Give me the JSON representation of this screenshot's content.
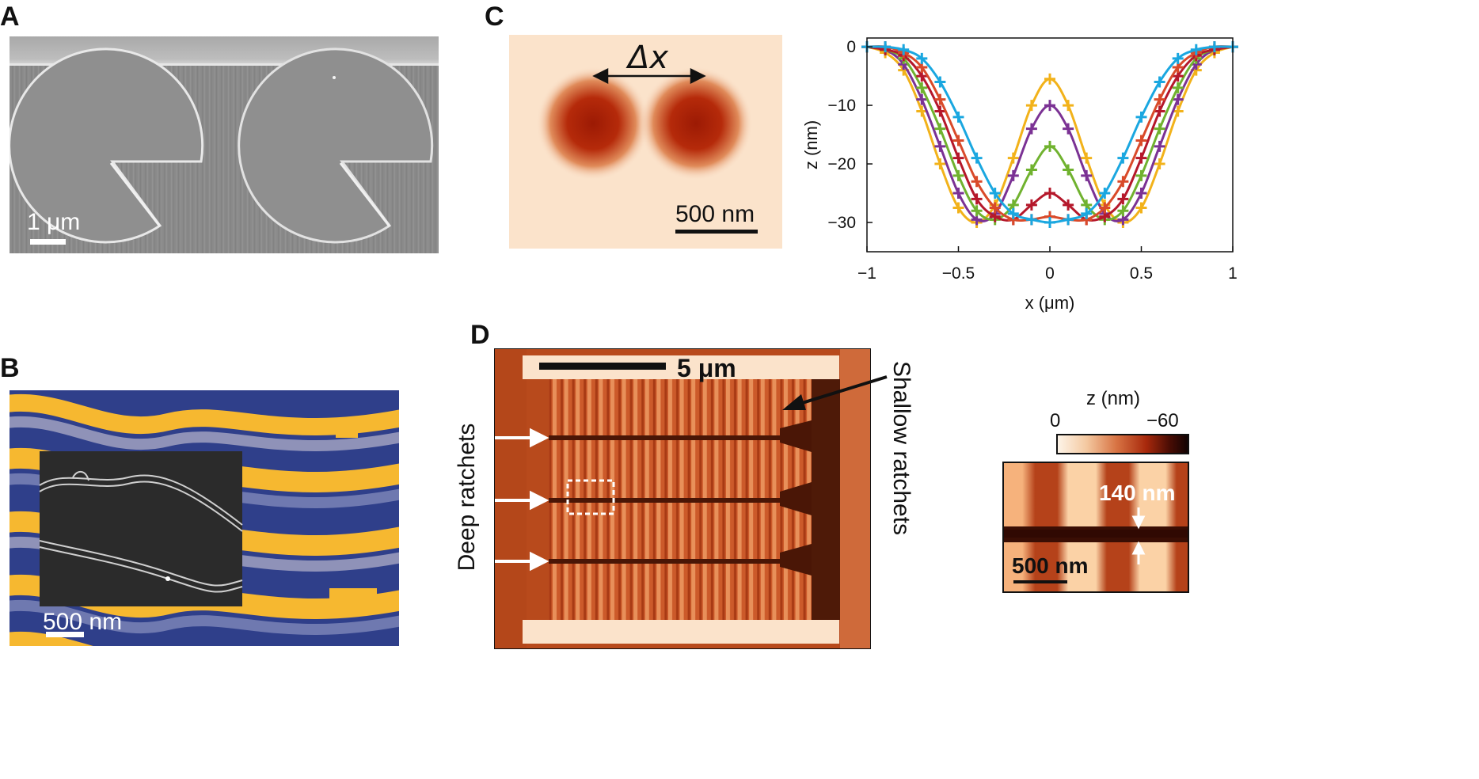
{
  "panels": {
    "a": {
      "letter": "A",
      "scalebar_label": "1 μm"
    },
    "b": {
      "letter": "B",
      "scalebar_label": "500 nm"
    },
    "c": {
      "letter": "C",
      "image_label": "Δx",
      "scalebar_label": "500 nm"
    },
    "d": {
      "letter": "D",
      "scalebar_label": "5 μm",
      "label_deep": "Deep ratchets",
      "label_shallow": "Shallow ratchets",
      "colorbar_title": "z (nm)",
      "colorbar_min": "0",
      "colorbar_max": "−60",
      "inset_annotation": "140 nm",
      "inset_scalebar_label": "500 nm"
    }
  },
  "colors": {
    "blue": "#1aa7e0",
    "red": "#d94a2a",
    "darkred": "#b5182b",
    "green": "#70b22f",
    "purple": "#7b3294",
    "yellow": "#f2b21a"
  },
  "chart_data": {
    "type": "line",
    "xlabel": "x (μm)",
    "ylabel": "z (nm)",
    "xlim": [
      -1,
      1
    ],
    "ylim": [
      -35,
      1.5
    ],
    "xticks": [
      -1,
      -0.5,
      0,
      0.5,
      1
    ],
    "xtick_labels": [
      "−1",
      "−0.5",
      "0",
      "0.5",
      "1"
    ],
    "yticks": [
      0,
      -10,
      -20,
      -30
    ],
    "ytick_labels": [
      "0",
      "−10",
      "−20",
      "−30"
    ],
    "grid": false,
    "legend": "none",
    "x": [
      -1,
      -0.9,
      -0.8,
      -0.7,
      -0.6,
      -0.5,
      -0.4,
      -0.3,
      -0.2,
      -0.1,
      0,
      0.1,
      0.2,
      0.3,
      0.4,
      0.5,
      0.6,
      0.7,
      0.8,
      0.9,
      1
    ],
    "series": [
      {
        "color": "#1aa7e0",
        "values": [
          0,
          0,
          -0.5,
          -2,
          -6,
          -12,
          -19,
          -25,
          -28.5,
          -29.5,
          -30,
          -29.5,
          -28.5,
          -25,
          -19,
          -12,
          -6,
          -2,
          -0.5,
          0,
          0
        ]
      },
      {
        "color": "#d94a2a",
        "values": [
          0,
          0,
          -1,
          -3.5,
          -9,
          -16,
          -23,
          -27.5,
          -29.5,
          -29.5,
          -29,
          -29.5,
          -29.5,
          -27.5,
          -23,
          -16,
          -9,
          -3.5,
          -1,
          0,
          0
        ]
      },
      {
        "color": "#b5182b",
        "values": [
          0,
          -0.5,
          -1.5,
          -5,
          -11,
          -19,
          -26,
          -29,
          -29.5,
          -27,
          -25,
          -27,
          -29.5,
          -29,
          -26,
          -19,
          -11,
          -5,
          -1.5,
          -0.5,
          0
        ]
      },
      {
        "color": "#70b22f",
        "values": [
          0,
          -0.5,
          -2,
          -7,
          -14,
          -22,
          -28,
          -29.5,
          -27,
          -21,
          -17,
          -21,
          -27,
          -29.5,
          -28,
          -22,
          -14,
          -7,
          -2,
          -0.5,
          0
        ]
      },
      {
        "color": "#7b3294",
        "values": [
          0,
          -0.5,
          -3,
          -9,
          -17,
          -25,
          -29.5,
          -28.5,
          -22,
          -14,
          -10,
          -14,
          -22,
          -28.5,
          -29.5,
          -25,
          -17,
          -9,
          -3,
          -0.5,
          0
        ]
      },
      {
        "color": "#f2b21a",
        "values": [
          0,
          -1,
          -4,
          -11,
          -20,
          -27.5,
          -30,
          -27,
          -19,
          -10,
          -5.5,
          -10,
          -19,
          -27,
          -30,
          -27.5,
          -20,
          -11,
          -4,
          -1,
          0
        ]
      }
    ]
  }
}
